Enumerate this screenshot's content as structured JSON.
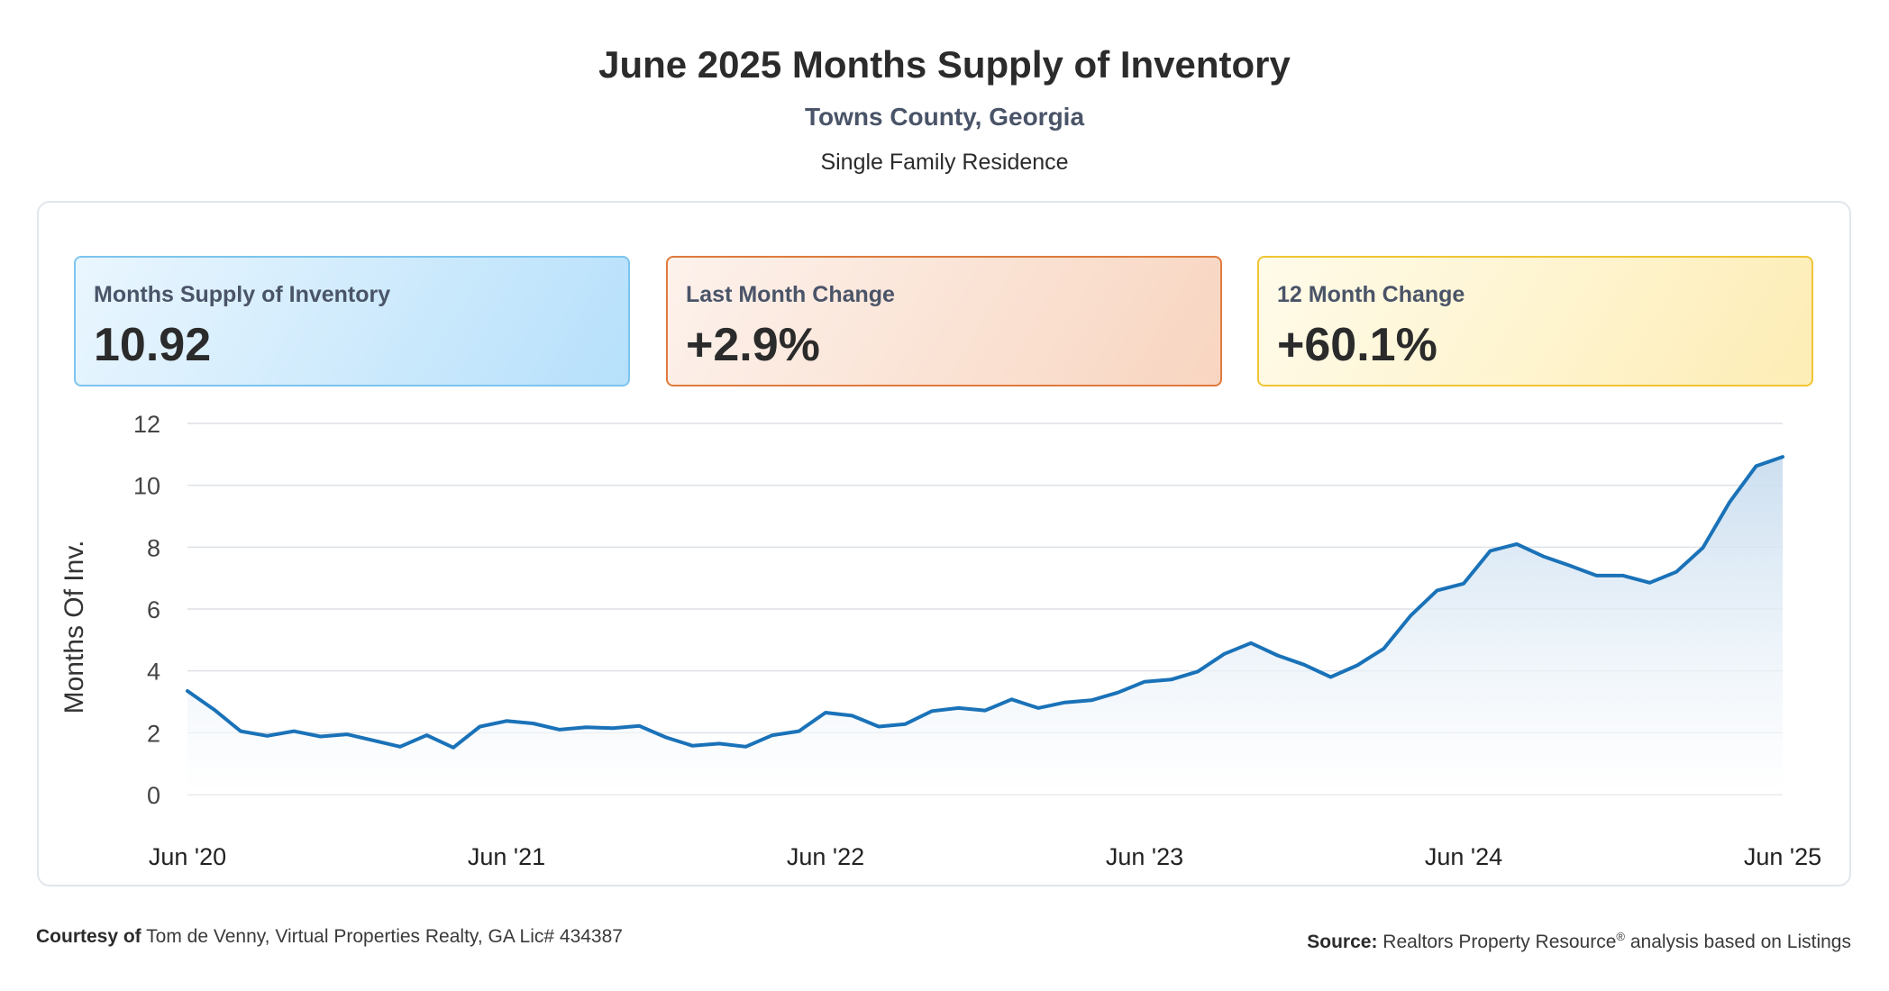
{
  "header": {
    "title": "June 2025 Months Supply of Inventory",
    "subtitle": "Towns County, Georgia",
    "segment": "Single Family Residence"
  },
  "cards": [
    {
      "label": "Months Supply of Inventory",
      "value": "10.92"
    },
    {
      "label": "Last Month Change",
      "value": "+2.9%"
    },
    {
      "label": "12 Month Change",
      "value": "+60.1%"
    }
  ],
  "colors": {
    "line": "#1a72b8",
    "area_top": "#c9ddef",
    "area_bottom": "#ffffff",
    "grid": "#dde1e6"
  },
  "chart_data": {
    "type": "area",
    "ylabel": "Months Of Inv.",
    "xlabel": "",
    "ylim": [
      0,
      12
    ],
    "yticks": [
      0,
      2,
      4,
      6,
      8,
      10,
      12
    ],
    "xtick_labels": [
      "Jun '20",
      "Jun '21",
      "Jun '22",
      "Jun '23",
      "Jun '24",
      "Jun '25"
    ],
    "grid": true,
    "series": [
      {
        "values": [
          3.35,
          2.75,
          2.05,
          1.9,
          2.05,
          1.88,
          1.95,
          1.75,
          1.55,
          1.92,
          1.52,
          2.2,
          2.38,
          2.3,
          2.1,
          2.18,
          2.15,
          2.22,
          1.85,
          1.58,
          1.65,
          1.55,
          1.92,
          2.05,
          2.65,
          2.55,
          2.2,
          2.28,
          2.7,
          2.8,
          2.72,
          3.08,
          2.8,
          2.98,
          3.05,
          3.3,
          3.65,
          3.72,
          3.98,
          4.55,
          4.9,
          4.5,
          4.2,
          3.8,
          4.18,
          4.72,
          5.78,
          6.6,
          6.82,
          7.88,
          8.1,
          7.7,
          7.4,
          7.08,
          7.08,
          6.85,
          7.2,
          7.98,
          9.45,
          10.62,
          10.92
        ]
      }
    ]
  },
  "footer": {
    "courtesy_label": "Courtesy of",
    "courtesy_text": "Tom de Venny, Virtual Properties Realty, GA Lic# 434387",
    "source_label": "Source:",
    "source_text_1": "Realtors Property Resource",
    "source_reg": "®",
    "source_text_2": " analysis based on Listings"
  }
}
